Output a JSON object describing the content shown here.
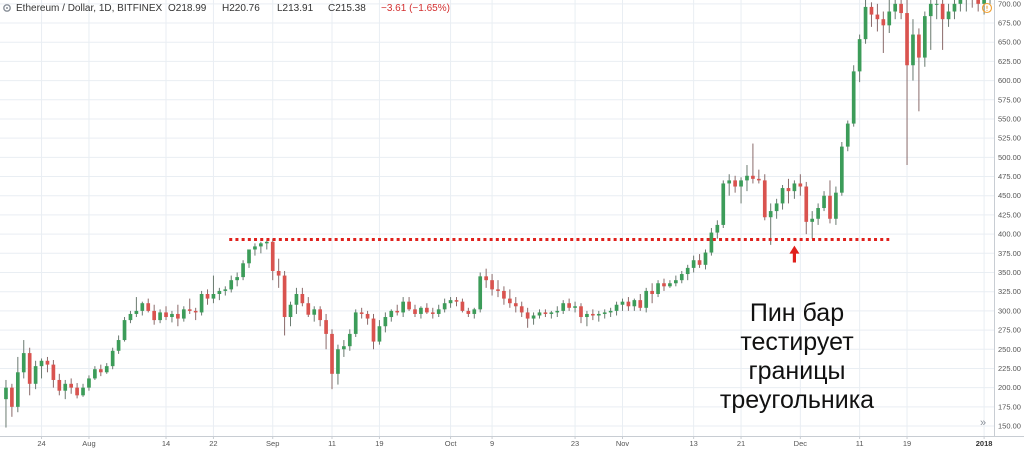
{
  "header": {
    "symbol": "Ethereum / Dollar, 1D, BITFINEX",
    "open": "O218.99",
    "high": "H220.76",
    "low": "L213.91",
    "close": "C215.38",
    "change": "−3.61 (−1.65%)"
  },
  "annotation": {
    "lines": [
      "Пин бар",
      "тестирует",
      "границы",
      "треугольника"
    ]
  },
  "controls": {
    "scroll_right": "»"
  },
  "icons": {
    "settings": "gear-icon",
    "alert": "alert-icon",
    "scroll": "double-chevron-right-icon"
  },
  "colors": {
    "up": "#3c9c59",
    "down": "#d9534f",
    "level": "#e0201c",
    "arrow": "#e0201c",
    "grid": "#e9eef3"
  },
  "chart_data": {
    "type": "candlestick",
    "y_axis": {
      "position": "right",
      "ylim": [
        137,
        705
      ],
      "ticks": [
        150,
        175,
        200,
        225,
        250,
        275,
        300,
        325,
        350,
        375,
        400,
        425,
        450,
        475,
        500,
        525,
        550,
        575,
        600,
        625,
        650,
        675,
        700
      ],
      "tick_labels": [
        "150.00",
        "175.00",
        "200.00",
        "225.00",
        "250.00",
        "275.00",
        "300.00",
        "325.00",
        "350.00",
        "375.00",
        "400.00",
        "425.00",
        "450.00",
        "475.00",
        "500.00",
        "525.00",
        "550.00",
        "575.00",
        "600.00",
        "625.00",
        "650.00",
        "675.00",
        "700.00"
      ]
    },
    "x_axis": {
      "ticks": [
        {
          "label": "24",
          "bar": 6
        },
        {
          "label": "Aug",
          "bar": 14
        },
        {
          "label": "14",
          "bar": 27
        },
        {
          "label": "22",
          "bar": 35
        },
        {
          "label": "Sep",
          "bar": 45
        },
        {
          "label": "11",
          "bar": 55
        },
        {
          "label": "19",
          "bar": 63
        },
        {
          "label": "Oct",
          "bar": 75
        },
        {
          "label": "9",
          "bar": 82
        },
        {
          "label": "23",
          "bar": 96
        },
        {
          "label": "Nov",
          "bar": 104
        },
        {
          "label": "13",
          "bar": 116
        },
        {
          "label": "21",
          "bar": 124
        },
        {
          "label": "Dec",
          "bar": 134
        },
        {
          "label": "11",
          "bar": 144
        },
        {
          "label": "19",
          "bar": 152
        },
        {
          "label": "2018",
          "bar": 165,
          "bold": true
        }
      ],
      "bars_total": 167
    },
    "grid": true,
    "level_line": {
      "value": 393,
      "from_bar": 38,
      "to_bar": 149,
      "style": "dotted"
    },
    "arrow": {
      "bar": 133,
      "from_value": 363,
      "to_value": 385
    },
    "ohlc": [
      [
        185,
        210,
        148,
        200
      ],
      [
        200,
        205,
        162,
        175
      ],
      [
        175,
        240,
        168,
        220
      ],
      [
        220,
        262,
        212,
        245
      ],
      [
        245,
        252,
        190,
        205
      ],
      [
        205,
        235,
        198,
        228
      ],
      [
        228,
        238,
        212,
        235
      ],
      [
        235,
        240,
        220,
        230
      ],
      [
        230,
        236,
        200,
        210
      ],
      [
        210,
        218,
        190,
        196
      ],
      [
        196,
        210,
        185,
        205
      ],
      [
        205,
        212,
        192,
        200
      ],
      [
        200,
        206,
        186,
        190
      ],
      [
        190,
        205,
        188,
        200
      ],
      [
        200,
        216,
        196,
        212
      ],
      [
        212,
        228,
        210,
        224
      ],
      [
        224,
        230,
        215,
        220
      ],
      [
        220,
        232,
        218,
        228
      ],
      [
        228,
        252,
        224,
        248
      ],
      [
        248,
        268,
        244,
        262
      ],
      [
        262,
        292,
        260,
        288
      ],
      [
        288,
        300,
        284,
        296
      ],
      [
        296,
        318,
        292,
        300
      ],
      [
        300,
        312,
        294,
        310
      ],
      [
        310,
        316,
        298,
        300
      ],
      [
        300,
        308,
        282,
        288
      ],
      [
        288,
        302,
        284,
        298
      ],
      [
        298,
        306,
        288,
        292
      ],
      [
        292,
        300,
        285,
        296
      ],
      [
        296,
        308,
        280,
        290
      ],
      [
        290,
        306,
        286,
        302
      ],
      [
        302,
        316,
        296,
        300
      ],
      [
        300,
        304,
        288,
        298
      ],
      [
        298,
        326,
        294,
        322
      ],
      [
        322,
        328,
        308,
        316
      ],
      [
        316,
        346,
        310,
        322
      ],
      [
        322,
        330,
        314,
        326
      ],
      [
        326,
        332,
        320,
        328
      ],
      [
        328,
        346,
        324,
        340
      ],
      [
        340,
        350,
        332,
        344
      ],
      [
        344,
        366,
        340,
        362
      ],
      [
        362,
        378,
        356,
        380
      ],
      [
        380,
        388,
        372,
        384
      ],
      [
        384,
        390,
        375,
        388
      ],
      [
        388,
        392,
        380,
        390
      ],
      [
        390,
        394,
        340,
        352
      ],
      [
        352,
        368,
        330,
        346
      ],
      [
        346,
        352,
        268,
        292
      ],
      [
        292,
        312,
        280,
        308
      ],
      [
        308,
        330,
        296,
        322
      ],
      [
        322,
        330,
        306,
        310
      ],
      [
        310,
        318,
        292,
        295
      ],
      [
        295,
        306,
        286,
        302
      ],
      [
        302,
        306,
        280,
        288
      ],
      [
        288,
        296,
        250,
        270
      ],
      [
        270,
        276,
        198,
        218
      ],
      [
        218,
        256,
        204,
        250
      ],
      [
        250,
        262,
        240,
        254
      ],
      [
        254,
        276,
        248,
        270
      ],
      [
        270,
        302,
        266,
        298
      ],
      [
        298,
        304,
        290,
        296
      ],
      [
        296,
        300,
        282,
        290
      ],
      [
        290,
        296,
        250,
        260
      ],
      [
        260,
        288,
        256,
        280
      ],
      [
        280,
        298,
        272,
        292
      ],
      [
        292,
        302,
        286,
        300
      ],
      [
        300,
        308,
        294,
        298
      ],
      [
        298,
        318,
        292,
        312
      ],
      [
        312,
        318,
        300,
        302
      ],
      [
        302,
        308,
        292,
        296
      ],
      [
        296,
        306,
        290,
        304
      ],
      [
        304,
        310,
        296,
        298
      ],
      [
        298,
        304,
        290,
        296
      ],
      [
        296,
        308,
        292,
        302
      ],
      [
        302,
        316,
        298,
        310
      ],
      [
        310,
        318,
        304,
        314
      ],
      [
        314,
        318,
        306,
        312
      ],
      [
        312,
        316,
        298,
        300
      ],
      [
        300,
        304,
        292,
        296
      ],
      [
        296,
        304,
        290,
        302
      ],
      [
        302,
        350,
        298,
        345
      ],
      [
        345,
        355,
        330,
        340
      ],
      [
        340,
        348,
        320,
        328
      ],
      [
        328,
        340,
        318,
        326
      ],
      [
        326,
        332,
        308,
        316
      ],
      [
        316,
        328,
        304,
        310
      ],
      [
        310,
        318,
        298,
        306
      ],
      [
        306,
        312,
        292,
        298
      ],
      [
        298,
        304,
        278,
        290
      ],
      [
        290,
        298,
        282,
        294
      ],
      [
        294,
        302,
        290,
        298
      ],
      [
        298,
        302,
        292,
        296
      ],
      [
        296,
        300,
        290,
        298
      ],
      [
        298,
        306,
        292,
        300
      ],
      [
        300,
        314,
        296,
        310
      ],
      [
        310,
        316,
        300,
        304
      ],
      [
        304,
        312,
        298,
        306
      ],
      [
        306,
        310,
        284,
        292
      ],
      [
        292,
        300,
        280,
        296
      ],
      [
        296,
        302,
        288,
        294
      ],
      [
        294,
        300,
        286,
        296
      ],
      [
        296,
        302,
        290,
        298
      ],
      [
        298,
        304,
        292,
        300
      ],
      [
        300,
        312,
        294,
        308
      ],
      [
        308,
        316,
        300,
        312
      ],
      [
        312,
        318,
        300,
        306
      ],
      [
        306,
        316,
        300,
        314
      ],
      [
        314,
        322,
        300,
        304
      ],
      [
        304,
        330,
        298,
        326
      ],
      [
        326,
        336,
        310,
        322
      ],
      [
        322,
        340,
        318,
        336
      ],
      [
        336,
        342,
        326,
        332
      ],
      [
        332,
        340,
        330,
        336
      ],
      [
        336,
        346,
        332,
        340
      ],
      [
        340,
        352,
        336,
        348
      ],
      [
        348,
        360,
        340,
        356
      ],
      [
        356,
        372,
        350,
        366
      ],
      [
        366,
        374,
        356,
        360
      ],
      [
        360,
        380,
        354,
        376
      ],
      [
        376,
        408,
        372,
        402
      ],
      [
        402,
        418,
        394,
        412
      ],
      [
        412,
        470,
        408,
        466
      ],
      [
        466,
        478,
        450,
        470
      ],
      [
        470,
        476,
        454,
        462
      ],
      [
        462,
        474,
        440,
        470
      ],
      [
        470,
        490,
        456,
        476
      ],
      [
        476,
        518,
        466,
        472
      ],
      [
        472,
        484,
        466,
        470
      ],
      [
        470,
        478,
        418,
        422
      ],
      [
        422,
        440,
        386,
        430
      ],
      [
        430,
        446,
        420,
        440
      ],
      [
        440,
        464,
        432,
        460
      ],
      [
        460,
        472,
        440,
        456
      ],
      [
        456,
        470,
        446,
        466
      ],
      [
        466,
        478,
        450,
        462
      ],
      [
        462,
        468,
        400,
        416
      ],
      [
        416,
        430,
        394,
        420
      ],
      [
        420,
        440,
        412,
        434
      ],
      [
        434,
        456,
        430,
        450
      ],
      [
        450,
        470,
        414,
        420
      ],
      [
        420,
        462,
        412,
        454
      ],
      [
        454,
        520,
        450,
        514
      ],
      [
        514,
        548,
        508,
        544
      ],
      [
        544,
        620,
        540,
        612
      ],
      [
        612,
        660,
        598,
        654
      ],
      [
        654,
        712,
        648,
        696
      ],
      [
        696,
        702,
        670,
        686
      ],
      [
        686,
        700,
        664,
        680
      ],
      [
        680,
        690,
        636,
        672
      ],
      [
        672,
        720,
        662,
        690
      ],
      [
        690,
        740,
        680,
        700
      ],
      [
        700,
        742,
        680,
        688
      ],
      [
        688,
        720,
        490,
        620
      ],
      [
        620,
        680,
        600,
        660
      ],
      [
        660,
        668,
        560,
        630
      ],
      [
        630,
        690,
        618,
        684
      ],
      [
        684,
        720,
        640,
        700
      ],
      [
        700,
        720,
        680,
        700
      ],
      [
        700,
        710,
        640,
        680
      ],
      [
        680,
        700,
        670,
        690
      ],
      [
        690,
        720,
        680,
        700
      ],
      [
        700,
        740,
        690,
        710
      ],
      [
        710,
        730,
        690,
        715
      ],
      [
        715,
        730,
        695,
        705
      ],
      [
        705,
        720,
        690,
        700
      ],
      [
        700,
        720,
        686,
        710
      ],
      [
        710,
        730,
        700,
        720
      ]
    ]
  }
}
